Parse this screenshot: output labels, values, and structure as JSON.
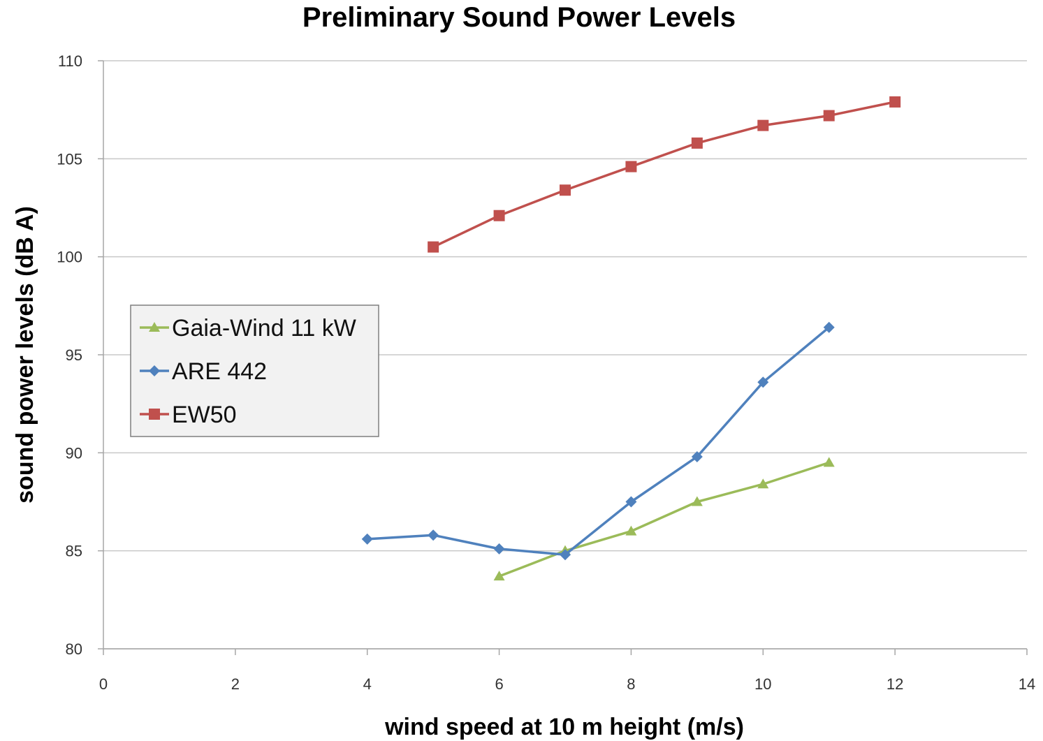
{
  "chart_data": {
    "type": "line",
    "title": "Preliminary Sound Power Levels",
    "xlabel": "wind speed at 10 m height (m/s)",
    "ylabel": "sound power levels (dB A)",
    "xlim": [
      0,
      14
    ],
    "ylim": [
      80,
      110
    ],
    "xticks": [
      0,
      2,
      4,
      6,
      8,
      10,
      12,
      14
    ],
    "yticks": [
      80,
      85,
      90,
      95,
      100,
      105,
      110
    ],
    "grid": "horizontal",
    "legend_position": "left",
    "series": [
      {
        "name": "Gaia-Wind 11 kW",
        "color": "#9bbb59",
        "marker": "triangle",
        "x": [
          6,
          7,
          8,
          9,
          10,
          11
        ],
        "y": [
          83.7,
          85.0,
          86.0,
          87.5,
          88.4,
          89.5
        ]
      },
      {
        "name": "ARE 442",
        "color": "#4f81bd",
        "marker": "diamond",
        "x": [
          4,
          5,
          6,
          7,
          8,
          9,
          10,
          11
        ],
        "y": [
          85.6,
          85.8,
          85.1,
          84.8,
          87.5,
          89.8,
          93.6,
          96.4
        ]
      },
      {
        "name": "EW50",
        "color": "#c0504d",
        "marker": "square",
        "x": [
          5,
          6,
          7,
          8,
          9,
          10,
          11,
          12
        ],
        "y": [
          100.5,
          102.1,
          103.4,
          104.6,
          105.8,
          106.7,
          107.2,
          107.9
        ]
      }
    ]
  }
}
